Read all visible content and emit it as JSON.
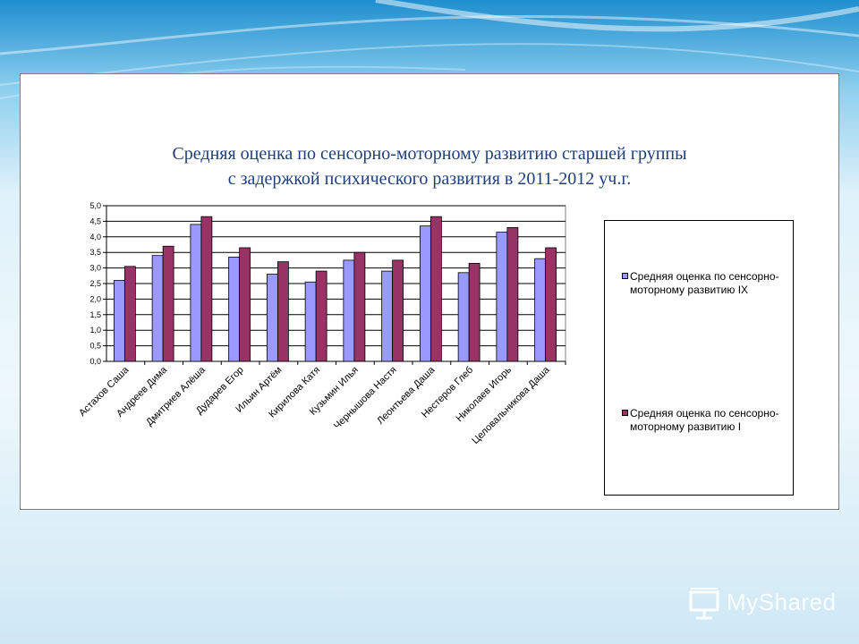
{
  "slide": {
    "title_line1": "Средняя оценка по сенсорно-моторному развитию старшей группы",
    "title_line2": "с задержкой психического развития в 2011-2012 уч.г."
  },
  "chart_data": {
    "type": "bar",
    "title": "Средняя оценка по сенсорно-моторному развитию старшей группы с задержкой психического развития в 2011-2012 уч.г.",
    "categories": [
      "Астахов Саша",
      "Андреев Дима",
      "Дмитриев Алёша",
      "Дударев Егор",
      "Ильин Артём",
      "Кирилова Катя",
      "Кузьмин Илья",
      "Чернышова Настя",
      "Леонтьева Даша",
      "Нестеров Глеб",
      "Николаев Игорь",
      "Целовальникова Даша"
    ],
    "series": [
      {
        "name": "Средняя оценка по сенсорно-моторному развитию IX",
        "color": "#9999ff",
        "values": [
          2.6,
          3.4,
          4.4,
          3.35,
          2.8,
          2.55,
          3.25,
          2.9,
          4.35,
          2.85,
          4.15,
          3.3
        ]
      },
      {
        "name": "Средняя оценка по сенсорно-моторному развитию I",
        "color": "#993366",
        "values": [
          3.05,
          3.7,
          4.65,
          3.65,
          3.2,
          2.9,
          3.5,
          3.25,
          4.65,
          3.15,
          4.3,
          3.65
        ]
      }
    ],
    "yticks": [
      "0,0",
      "0,5",
      "1,0",
      "1,5",
      "2,0",
      "2,5",
      "3,0",
      "3,5",
      "4,0",
      "4,5",
      "5,0"
    ],
    "ylim": [
      0,
      5
    ],
    "grid": true,
    "legend": "right"
  },
  "watermark": {
    "text": "MyShared"
  }
}
